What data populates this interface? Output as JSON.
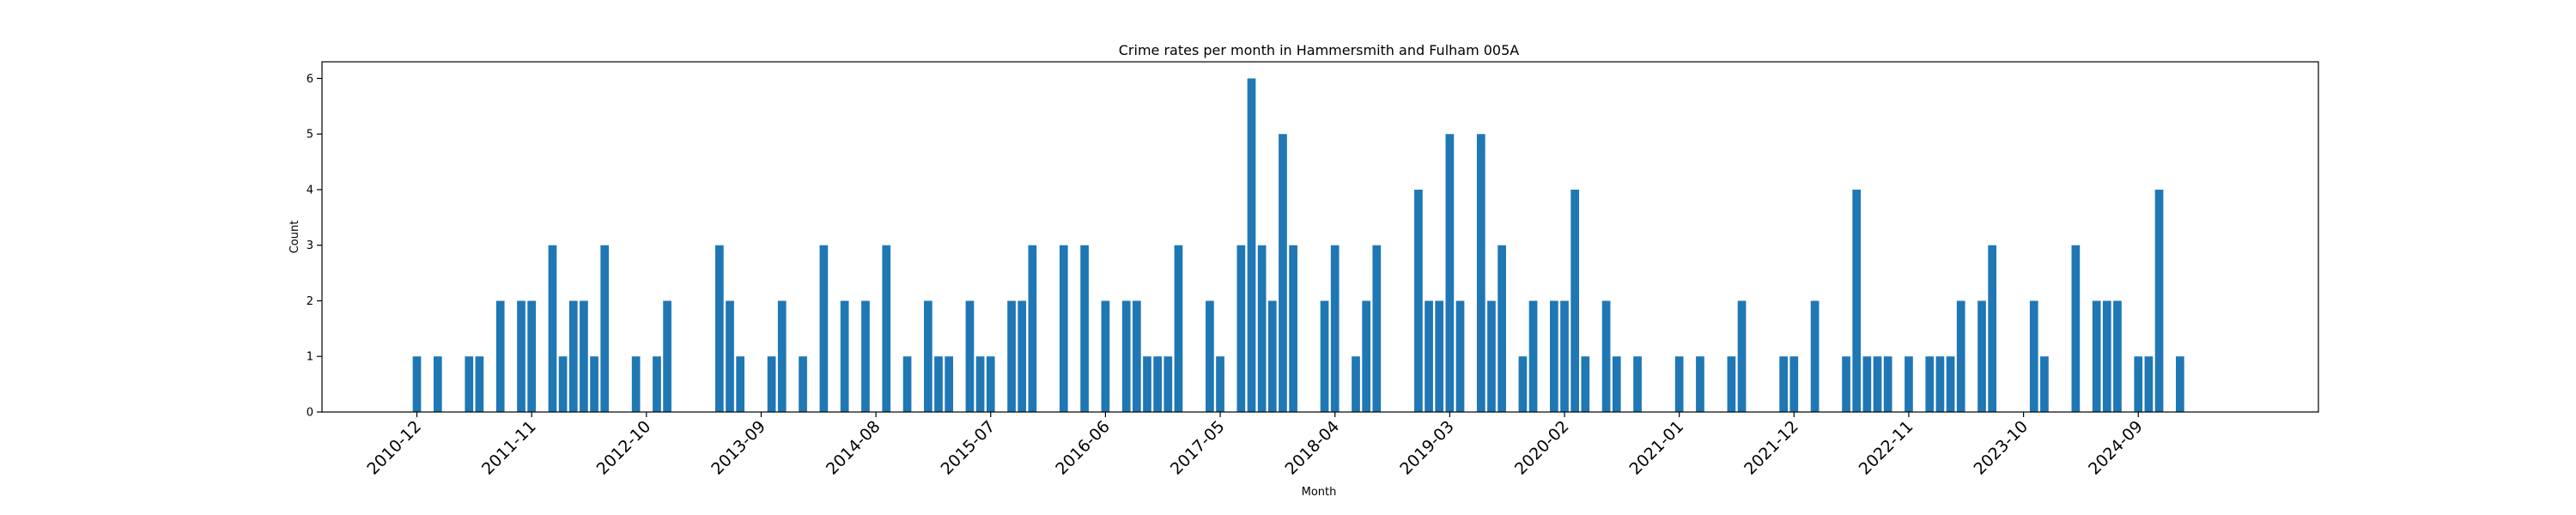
{
  "chart_data": {
    "type": "bar",
    "title": "Crime rates per month in Hammersmith and Fulham 005A",
    "xlabel": "Month",
    "ylabel": "Count",
    "ylim": [
      0,
      6.3
    ],
    "y_ticks": [
      0,
      1,
      2,
      3,
      4,
      5,
      6
    ],
    "x_tick_labels": [
      "2010-12",
      "2011-11",
      "2012-10",
      "2013-09",
      "2014-08",
      "2015-07",
      "2016-06",
      "2017-05",
      "2018-04",
      "2019-03",
      "2020-02",
      "2021-01",
      "2021-12",
      "2022-11",
      "2023-10",
      "2024-09"
    ],
    "grid": false,
    "color": "#1f77b4",
    "months": [
      "2010-12",
      "2011-02",
      "2011-05",
      "2011-06",
      "2011-08",
      "2011-10",
      "2011-11",
      "2012-01",
      "2012-02",
      "2012-03",
      "2012-04",
      "2012-05",
      "2012-06",
      "2012-09",
      "2012-11",
      "2012-12",
      "2013-05",
      "2013-06",
      "2013-07",
      "2013-10",
      "2013-11",
      "2014-01",
      "2014-03",
      "2014-05",
      "2014-07",
      "2014-09",
      "2014-11",
      "2015-01",
      "2015-02",
      "2015-03",
      "2015-05",
      "2015-06",
      "2015-07",
      "2015-09",
      "2015-10",
      "2015-11",
      "2016-02",
      "2016-04",
      "2016-06",
      "2016-08",
      "2016-09",
      "2016-10",
      "2016-11",
      "2016-12",
      "2017-01",
      "2017-04",
      "2017-05",
      "2017-07",
      "2017-08",
      "2017-09",
      "2017-10",
      "2017-11",
      "2017-12",
      "2018-03",
      "2018-04",
      "2018-06",
      "2018-07",
      "2018-08",
      "2018-12",
      "2019-01",
      "2019-02",
      "2019-03",
      "2019-04",
      "2019-06",
      "2019-07",
      "2019-08",
      "2019-10",
      "2019-11",
      "2020-01",
      "2020-02",
      "2020-03",
      "2020-04",
      "2020-06",
      "2020-07",
      "2020-09",
      "2021-01",
      "2021-03",
      "2021-06",
      "2021-07",
      "2021-11",
      "2021-12",
      "2022-02",
      "2022-05",
      "2022-06",
      "2022-07",
      "2022-08",
      "2022-09",
      "2022-11",
      "2023-01",
      "2023-02",
      "2023-03",
      "2023-04",
      "2023-06",
      "2023-07",
      "2023-11",
      "2023-12",
      "2024-03",
      "2024-05",
      "2024-06",
      "2024-07",
      "2024-09",
      "2024-10",
      "2024-11",
      "2025-01"
    ],
    "values": [
      1,
      1,
      1,
      1,
      2,
      2,
      2,
      3,
      1,
      2,
      2,
      1,
      3,
      1,
      1,
      2,
      3,
      2,
      1,
      1,
      2,
      1,
      3,
      2,
      2,
      3,
      1,
      2,
      1,
      1,
      2,
      1,
      1,
      2,
      2,
      3,
      3,
      3,
      2,
      2,
      2,
      1,
      1,
      1,
      3,
      2,
      1,
      3,
      6,
      3,
      2,
      5,
      3,
      2,
      3,
      1,
      2,
      3,
      4,
      2,
      2,
      5,
      2,
      5,
      2,
      3,
      1,
      2,
      2,
      2,
      4,
      1,
      2,
      1,
      1,
      1,
      1,
      1,
      2,
      1,
      1,
      2,
      1,
      4,
      1,
      1,
      1,
      1,
      1,
      1,
      1,
      2,
      2,
      3,
      2,
      1,
      3,
      2,
      2,
      2,
      1,
      1,
      4,
      1
    ]
  }
}
